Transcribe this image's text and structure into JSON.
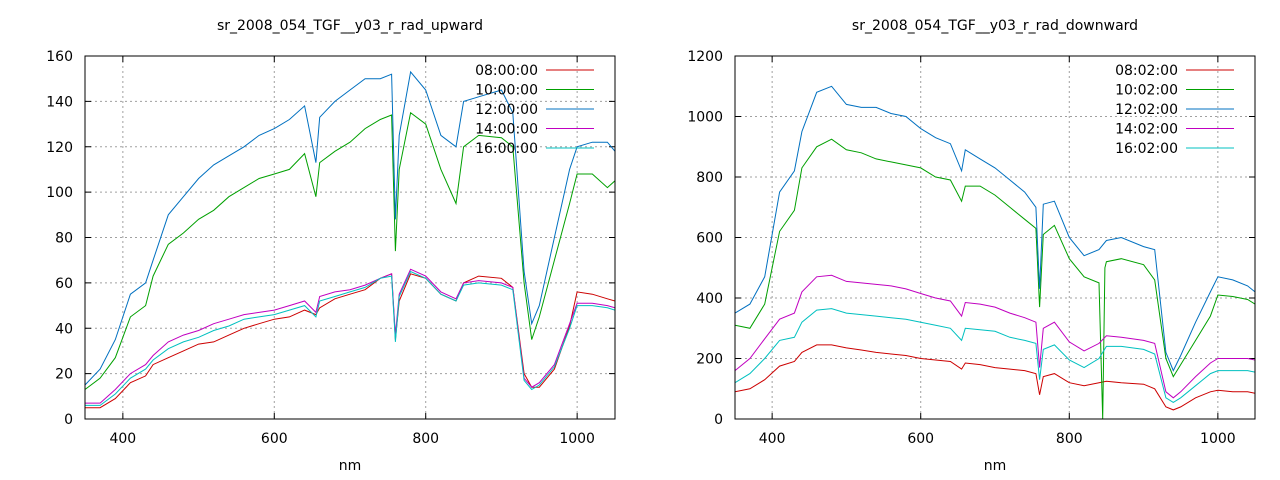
{
  "chart_data": [
    {
      "type": "line",
      "title": "sr_2008_054_TGF__y03_r_rad_upward",
      "xlabel": "nm",
      "ylabel": "",
      "xlim": [
        350,
        1050
      ],
      "ylim": [
        0,
        160
      ],
      "xticks": [
        400,
        600,
        800,
        1000
      ],
      "yticks": [
        0,
        20,
        40,
        60,
        80,
        100,
        120,
        140,
        160
      ],
      "grid": true,
      "legend_position": "top-right",
      "series": [
        {
          "name": "08:00:00",
          "color": "#cc0000",
          "x": [
            350,
            370,
            390,
            410,
            430,
            440,
            460,
            480,
            500,
            520,
            540,
            560,
            580,
            600,
            620,
            640,
            655,
            660,
            680,
            700,
            720,
            740,
            755,
            760,
            765,
            780,
            800,
            820,
            840,
            850,
            870,
            900,
            915,
            930,
            940,
            950,
            970,
            990,
            1000,
            1020,
            1040,
            1050
          ],
          "y": [
            5,
            5,
            9,
            16,
            19,
            24,
            27,
            30,
            33,
            34,
            37,
            40,
            42,
            44,
            45,
            48,
            46,
            49,
            53,
            55,
            57,
            62,
            64,
            35,
            52,
            64,
            62,
            55,
            52,
            60,
            63,
            62,
            58,
            20,
            14,
            14,
            22,
            41,
            56,
            55,
            53,
            52
          ]
        },
        {
          "name": "10:00:00",
          "color": "#00a000",
          "x": [
            350,
            370,
            390,
            410,
            430,
            440,
            460,
            480,
            500,
            520,
            540,
            560,
            580,
            600,
            620,
            640,
            655,
            660,
            680,
            700,
            720,
            740,
            755,
            760,
            765,
            780,
            800,
            820,
            840,
            850,
            870,
            900,
            915,
            930,
            940,
            950,
            970,
            990,
            1000,
            1020,
            1040,
            1050
          ],
          "y": [
            13,
            18,
            27,
            45,
            50,
            63,
            77,
            82,
            88,
            92,
            98,
            102,
            106,
            108,
            110,
            117,
            98,
            113,
            118,
            122,
            128,
            132,
            134,
            74,
            110,
            135,
            130,
            110,
            95,
            120,
            125,
            124,
            120,
            60,
            35,
            45,
            70,
            95,
            108,
            108,
            102,
            105
          ]
        },
        {
          "name": "12:00:00",
          "color": "#0070c0",
          "x": [
            350,
            370,
            390,
            410,
            430,
            440,
            460,
            480,
            500,
            520,
            540,
            560,
            580,
            600,
            620,
            640,
            655,
            660,
            680,
            700,
            720,
            740,
            755,
            760,
            765,
            780,
            800,
            820,
            840,
            850,
            870,
            900,
            915,
            930,
            940,
            950,
            970,
            990,
            1000,
            1020,
            1040,
            1050
          ],
          "y": [
            15,
            22,
            35,
            55,
            60,
            70,
            90,
            98,
            106,
            112,
            116,
            120,
            125,
            128,
            132,
            138,
            113,
            133,
            140,
            145,
            150,
            150,
            152,
            88,
            125,
            153,
            145,
            125,
            120,
            140,
            142,
            145,
            135,
            65,
            42,
            50,
            80,
            110,
            120,
            122,
            122,
            118
          ]
        },
        {
          "name": "14:00:00",
          "color": "#c000c0",
          "x": [
            350,
            370,
            390,
            410,
            430,
            440,
            460,
            480,
            500,
            520,
            540,
            560,
            580,
            600,
            620,
            640,
            655,
            660,
            680,
            700,
            720,
            740,
            755,
            760,
            765,
            780,
            800,
            820,
            840,
            850,
            870,
            900,
            915,
            930,
            940,
            950,
            970,
            990,
            1000,
            1020,
            1040,
            1050
          ],
          "y": [
            7,
            7,
            13,
            20,
            24,
            28,
            34,
            37,
            39,
            42,
            44,
            46,
            47,
            48,
            50,
            52,
            47,
            54,
            56,
            57,
            59,
            62,
            64,
            37,
            55,
            66,
            63,
            56,
            53,
            60,
            61,
            60,
            58,
            18,
            14,
            16,
            24,
            42,
            51,
            51,
            50,
            49
          ]
        },
        {
          "name": "16:00:00",
          "color": "#00c0c0",
          "x": [
            350,
            370,
            390,
            410,
            430,
            440,
            460,
            480,
            500,
            520,
            540,
            560,
            580,
            600,
            620,
            640,
            655,
            660,
            680,
            700,
            720,
            740,
            755,
            760,
            765,
            780,
            800,
            820,
            840,
            850,
            870,
            900,
            915,
            930,
            940,
            950,
            970,
            990,
            1000,
            1020,
            1040,
            1050
          ],
          "y": [
            6,
            6,
            11,
            18,
            22,
            26,
            31,
            34,
            36,
            39,
            41,
            44,
            45,
            46,
            48,
            50,
            45,
            52,
            54,
            56,
            58,
            62,
            63,
            34,
            54,
            65,
            62,
            55,
            52,
            59,
            60,
            59,
            57,
            17,
            13,
            15,
            23,
            40,
            50,
            50,
            49,
            48
          ]
        }
      ]
    },
    {
      "type": "line",
      "title": "sr_2008_054_TGF__y03_r_rad_downward",
      "xlabel": "nm",
      "ylabel": "",
      "xlim": [
        350,
        1050
      ],
      "ylim": [
        0,
        1200
      ],
      "xticks": [
        400,
        600,
        800,
        1000
      ],
      "yticks": [
        0,
        200,
        400,
        600,
        800,
        1000,
        1200
      ],
      "grid": true,
      "legend_position": "top-right",
      "series": [
        {
          "name": "08:02:00",
          "color": "#cc0000",
          "x": [
            350,
            370,
            390,
            410,
            430,
            440,
            460,
            480,
            500,
            520,
            540,
            560,
            580,
            600,
            620,
            640,
            655,
            660,
            680,
            700,
            720,
            740,
            755,
            760,
            765,
            780,
            800,
            820,
            840,
            850,
            870,
            900,
            915,
            930,
            940,
            950,
            970,
            990,
            1000,
            1020,
            1040,
            1050
          ],
          "y": [
            90,
            100,
            130,
            175,
            190,
            220,
            245,
            245,
            235,
            228,
            220,
            215,
            210,
            200,
            195,
            190,
            165,
            185,
            180,
            170,
            165,
            160,
            150,
            80,
            140,
            150,
            120,
            110,
            120,
            125,
            120,
            115,
            100,
            40,
            30,
            40,
            70,
            90,
            95,
            90,
            90,
            85
          ]
        },
        {
          "name": "10:02:00",
          "color": "#00a000",
          "x": [
            350,
            370,
            390,
            410,
            430,
            440,
            460,
            480,
            500,
            520,
            540,
            560,
            580,
            600,
            620,
            640,
            655,
            660,
            680,
            700,
            720,
            740,
            755,
            760,
            765,
            780,
            800,
            820,
            840,
            845,
            848,
            850,
            870,
            900,
            915,
            930,
            940,
            950,
            970,
            990,
            1000,
            1020,
            1040,
            1050
          ],
          "y": [
            310,
            300,
            380,
            620,
            690,
            830,
            900,
            925,
            890,
            880,
            860,
            850,
            840,
            830,
            800,
            790,
            720,
            770,
            770,
            740,
            700,
            660,
            630,
            370,
            610,
            640,
            530,
            470,
            450,
            0,
            500,
            520,
            530,
            510,
            460,
            200,
            140,
            180,
            260,
            340,
            410,
            405,
            395,
            380
          ]
        },
        {
          "name": "12:02:00",
          "color": "#0070c0",
          "x": [
            350,
            370,
            390,
            410,
            430,
            440,
            460,
            480,
            500,
            520,
            540,
            560,
            580,
            600,
            620,
            640,
            655,
            660,
            680,
            700,
            720,
            740,
            755,
            760,
            765,
            780,
            800,
            820,
            840,
            850,
            870,
            900,
            915,
            930,
            940,
            950,
            970,
            990,
            1000,
            1020,
            1040,
            1050
          ],
          "y": [
            350,
            380,
            470,
            750,
            820,
            950,
            1080,
            1100,
            1040,
            1030,
            1030,
            1010,
            1000,
            960,
            930,
            910,
            820,
            890,
            860,
            830,
            790,
            750,
            700,
            430,
            710,
            720,
            600,
            540,
            560,
            590,
            600,
            570,
            560,
            220,
            160,
            210,
            320,
            420,
            470,
            460,
            440,
            420
          ]
        },
        {
          "name": "14:02:00",
          "color": "#c000c0",
          "x": [
            350,
            370,
            390,
            410,
            430,
            440,
            460,
            480,
            500,
            520,
            540,
            560,
            580,
            600,
            620,
            640,
            655,
            660,
            680,
            700,
            720,
            740,
            755,
            760,
            765,
            780,
            800,
            820,
            840,
            850,
            870,
            900,
            915,
            930,
            940,
            950,
            970,
            990,
            1000,
            1020,
            1040,
            1050
          ],
          "y": [
            160,
            200,
            265,
            330,
            350,
            420,
            470,
            475,
            455,
            450,
            445,
            440,
            430,
            415,
            400,
            390,
            340,
            385,
            380,
            370,
            350,
            335,
            320,
            170,
            300,
            320,
            255,
            225,
            250,
            275,
            270,
            260,
            250,
            90,
            70,
            90,
            140,
            185,
            200,
            200,
            200,
            195
          ]
        },
        {
          "name": "16:02:00",
          "color": "#00c0c0",
          "x": [
            350,
            370,
            390,
            410,
            430,
            440,
            460,
            480,
            500,
            520,
            540,
            560,
            580,
            600,
            620,
            640,
            655,
            660,
            680,
            700,
            720,
            740,
            755,
            760,
            765,
            780,
            800,
            820,
            840,
            850,
            870,
            900,
            915,
            930,
            940,
            950,
            970,
            990,
            1000,
            1020,
            1040,
            1050
          ],
          "y": [
            120,
            150,
            200,
            260,
            270,
            320,
            360,
            365,
            350,
            345,
            340,
            335,
            330,
            320,
            310,
            300,
            260,
            300,
            295,
            290,
            270,
            260,
            250,
            130,
            230,
            245,
            195,
            170,
            200,
            240,
            240,
            230,
            215,
            70,
            55,
            70,
            110,
            150,
            160,
            160,
            160,
            155
          ]
        }
      ]
    }
  ]
}
